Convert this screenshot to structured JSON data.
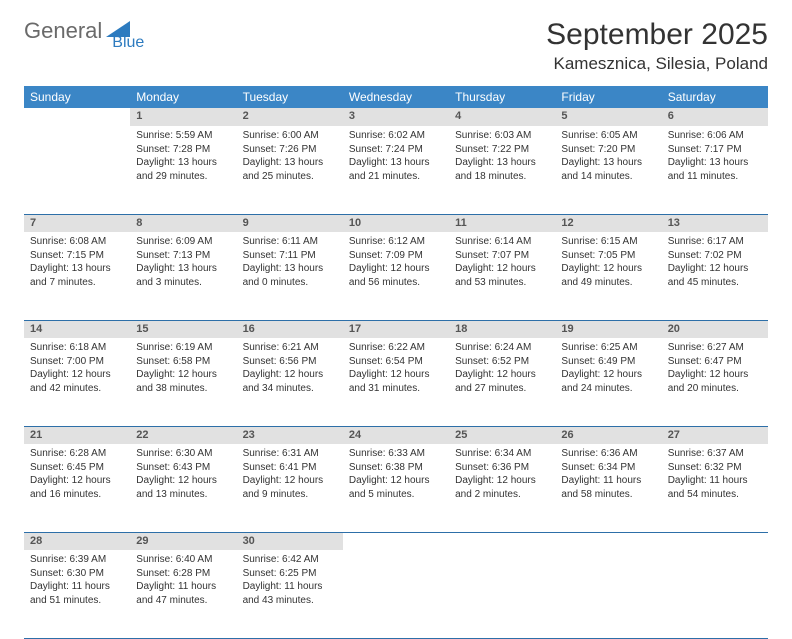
{
  "logo": {
    "part1": "General",
    "part2": "Blue"
  },
  "title": "September 2025",
  "location": "Kamesznica, Silesia, Poland",
  "colors": {
    "header_bg": "#3b86c6",
    "header_fg": "#ffffff",
    "daynum_bg": "#e1e1e1",
    "border": "#2d6fa8",
    "logo_gray": "#6a6a6a",
    "logo_blue": "#2d7bbf"
  },
  "weekdays": [
    "Sunday",
    "Monday",
    "Tuesday",
    "Wednesday",
    "Thursday",
    "Friday",
    "Saturday"
  ],
  "weeks": [
    [
      null,
      {
        "n": "1",
        "sr": "5:59 AM",
        "ss": "7:28 PM",
        "dl": "13 hours and 29 minutes."
      },
      {
        "n": "2",
        "sr": "6:00 AM",
        "ss": "7:26 PM",
        "dl": "13 hours and 25 minutes."
      },
      {
        "n": "3",
        "sr": "6:02 AM",
        "ss": "7:24 PM",
        "dl": "13 hours and 21 minutes."
      },
      {
        "n": "4",
        "sr": "6:03 AM",
        "ss": "7:22 PM",
        "dl": "13 hours and 18 minutes."
      },
      {
        "n": "5",
        "sr": "6:05 AM",
        "ss": "7:20 PM",
        "dl": "13 hours and 14 minutes."
      },
      {
        "n": "6",
        "sr": "6:06 AM",
        "ss": "7:17 PM",
        "dl": "13 hours and 11 minutes."
      }
    ],
    [
      {
        "n": "7",
        "sr": "6:08 AM",
        "ss": "7:15 PM",
        "dl": "13 hours and 7 minutes."
      },
      {
        "n": "8",
        "sr": "6:09 AM",
        "ss": "7:13 PM",
        "dl": "13 hours and 3 minutes."
      },
      {
        "n": "9",
        "sr": "6:11 AM",
        "ss": "7:11 PM",
        "dl": "13 hours and 0 minutes."
      },
      {
        "n": "10",
        "sr": "6:12 AM",
        "ss": "7:09 PM",
        "dl": "12 hours and 56 minutes."
      },
      {
        "n": "11",
        "sr": "6:14 AM",
        "ss": "7:07 PM",
        "dl": "12 hours and 53 minutes."
      },
      {
        "n": "12",
        "sr": "6:15 AM",
        "ss": "7:05 PM",
        "dl": "12 hours and 49 minutes."
      },
      {
        "n": "13",
        "sr": "6:17 AM",
        "ss": "7:02 PM",
        "dl": "12 hours and 45 minutes."
      }
    ],
    [
      {
        "n": "14",
        "sr": "6:18 AM",
        "ss": "7:00 PM",
        "dl": "12 hours and 42 minutes."
      },
      {
        "n": "15",
        "sr": "6:19 AM",
        "ss": "6:58 PM",
        "dl": "12 hours and 38 minutes."
      },
      {
        "n": "16",
        "sr": "6:21 AM",
        "ss": "6:56 PM",
        "dl": "12 hours and 34 minutes."
      },
      {
        "n": "17",
        "sr": "6:22 AM",
        "ss": "6:54 PM",
        "dl": "12 hours and 31 minutes."
      },
      {
        "n": "18",
        "sr": "6:24 AM",
        "ss": "6:52 PM",
        "dl": "12 hours and 27 minutes."
      },
      {
        "n": "19",
        "sr": "6:25 AM",
        "ss": "6:49 PM",
        "dl": "12 hours and 24 minutes."
      },
      {
        "n": "20",
        "sr": "6:27 AM",
        "ss": "6:47 PM",
        "dl": "12 hours and 20 minutes."
      }
    ],
    [
      {
        "n": "21",
        "sr": "6:28 AM",
        "ss": "6:45 PM",
        "dl": "12 hours and 16 minutes."
      },
      {
        "n": "22",
        "sr": "6:30 AM",
        "ss": "6:43 PM",
        "dl": "12 hours and 13 minutes."
      },
      {
        "n": "23",
        "sr": "6:31 AM",
        "ss": "6:41 PM",
        "dl": "12 hours and 9 minutes."
      },
      {
        "n": "24",
        "sr": "6:33 AM",
        "ss": "6:38 PM",
        "dl": "12 hours and 5 minutes."
      },
      {
        "n": "25",
        "sr": "6:34 AM",
        "ss": "6:36 PM",
        "dl": "12 hours and 2 minutes."
      },
      {
        "n": "26",
        "sr": "6:36 AM",
        "ss": "6:34 PM",
        "dl": "11 hours and 58 minutes."
      },
      {
        "n": "27",
        "sr": "6:37 AM",
        "ss": "6:32 PM",
        "dl": "11 hours and 54 minutes."
      }
    ],
    [
      {
        "n": "28",
        "sr": "6:39 AM",
        "ss": "6:30 PM",
        "dl": "11 hours and 51 minutes."
      },
      {
        "n": "29",
        "sr": "6:40 AM",
        "ss": "6:28 PM",
        "dl": "11 hours and 47 minutes."
      },
      {
        "n": "30",
        "sr": "6:42 AM",
        "ss": "6:25 PM",
        "dl": "11 hours and 43 minutes."
      },
      null,
      null,
      null,
      null
    ]
  ],
  "labels": {
    "sunrise": "Sunrise:",
    "sunset": "Sunset:",
    "daylight": "Daylight:"
  }
}
